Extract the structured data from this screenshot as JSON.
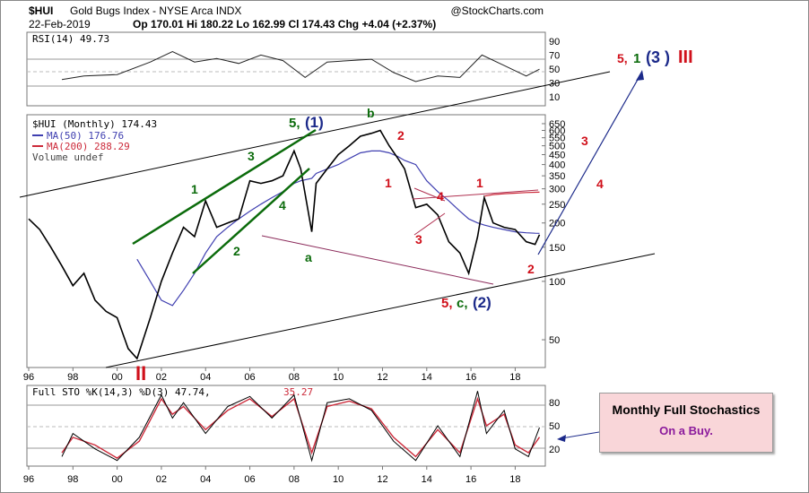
{
  "header": {
    "symbol": "$HUI",
    "name": "Gold Bugs Index - NYSE Arca INDX",
    "source": "@StockCharts.com",
    "date": "22-Feb-2019",
    "quote": "Op 170.01  Hi 180.22  Lo 162.99  Cl 174.43  Chg +4.04 (+2.37%)"
  },
  "rsi_panel": {
    "label": "RSI(14) 49.73",
    "ticks": [
      "90",
      "70",
      "50",
      "30",
      "10"
    ]
  },
  "price_panel": {
    "label": "$HUI (Monthly) 174.43",
    "ma50": "MA(50) 176.76",
    "ma200": "MA(200) 288.29",
    "volume": "Volume undef",
    "ticks": [
      "650",
      "600",
      "550",
      "500",
      "450",
      "400",
      "350",
      "300",
      "250",
      "200",
      "150",
      "100",
      "50"
    ],
    "colors": {
      "price": "#000000",
      "ma50": "#3f3fb0",
      "ma200": "#cc2a3a",
      "down": "#d0001b"
    }
  },
  "sto_panel": {
    "label_a": "Full STO %K(14,3) %D(3) 47.74,",
    "label_b": "35.27",
    "ticks": [
      "80",
      "50",
      "20"
    ]
  },
  "x_axis": [
    "96",
    "98",
    "00",
    "02",
    "04",
    "06",
    "08",
    "10",
    "12",
    "14",
    "16",
    "18"
  ],
  "wave_labels": [
    {
      "text": "5,",
      "color": "#0b6b0b"
    },
    {
      "text": "(1)",
      "color": "#1c2a8a"
    },
    {
      "text": "b",
      "color": "#0b6b0b"
    },
    {
      "text": "2",
      "color": "#d0101b"
    },
    {
      "text": "1",
      "color": "#0b6b0b"
    },
    {
      "text": "3",
      "color": "#0b6b0b"
    },
    {
      "text": "4",
      "color": "#0b6b0b"
    },
    {
      "text": "2",
      "color": "#0b6b0b"
    },
    {
      "text": "a",
      "color": "#0b6b0b"
    },
    {
      "text": "1",
      "color": "#d0101b"
    },
    {
      "text": "4",
      "color": "#d0101b"
    },
    {
      "text": "3",
      "color": "#d0101b"
    },
    {
      "text": "1",
      "color": "#d0101b"
    },
    {
      "text": "2",
      "color": "#d0101b"
    },
    {
      "text": "5,",
      "color": "#d0101b"
    },
    {
      "text": "c,",
      "color": "#0b6b0b"
    },
    {
      "text": "(2)",
      "color": "#1c2a8a"
    },
    {
      "text": "3",
      "color": "#d0101b"
    },
    {
      "text": "4",
      "color": "#d0101b"
    },
    {
      "text": "5,",
      "color": "#d0101b"
    },
    {
      "text": "1",
      "color": "#0b6b0b"
    },
    {
      "text": "(3 )",
      "color": "#1c2a8a"
    },
    {
      "text": "III",
      "color": "#d0101b"
    },
    {
      "text": "II",
      "color": "#d0101b"
    }
  ],
  "note": {
    "title": "Monthly Full Stochastics",
    "subtitle": "On a Buy."
  },
  "chart_data": {
    "type": "line",
    "title": "$HUI Gold Bugs Index (Monthly)",
    "x": [
      1996,
      1996.5,
      1997,
      1997.5,
      1998,
      1998.5,
      1999,
      1999.5,
      2000,
      2000.5,
      2000.9,
      2001.5,
      2002,
      2002.5,
      2003,
      2003.5,
      2004,
      2004.5,
      2005,
      2005.5,
      2006,
      2006.5,
      2007,
      2007.5,
      2008,
      2008.3,
      2008.8,
      2009,
      2009.5,
      2010,
      2010.5,
      2011,
      2011.5,
      2011.9,
      2012.3,
      2012.7,
      2013,
      2013.5,
      2014,
      2014.5,
      2015,
      2015.5,
      2015.9,
      2016.3,
      2016.6,
      2017,
      2017.5,
      2018,
      2018.5,
      2018.9,
      2019.1
    ],
    "series": [
      {
        "name": "$HUI (Monthly)",
        "values": [
          210,
          185,
          150,
          120,
          95,
          110,
          80,
          70,
          65,
          45,
          40,
          65,
          100,
          140,
          190,
          170,
          260,
          190,
          200,
          210,
          330,
          320,
          330,
          350,
          470,
          380,
          180,
          320,
          380,
          450,
          500,
          560,
          580,
          600,
          500,
          430,
          380,
          240,
          250,
          220,
          160,
          140,
          110,
          170,
          270,
          200,
          190,
          185,
          160,
          155,
          174
        ]
      },
      {
        "name": "MA(50)",
        "values": [
          null,
          null,
          null,
          null,
          null,
          null,
          null,
          null,
          null,
          null,
          130,
          100,
          80,
          75,
          90,
          110,
          140,
          170,
          190,
          210,
          230,
          250,
          270,
          290,
          320,
          330,
          340,
          360,
          380,
          400,
          430,
          460,
          470,
          470,
          460,
          440,
          420,
          400,
          330,
          290,
          260,
          230,
          210,
          200,
          195,
          190,
          185,
          180,
          178,
          177,
          176.76
        ]
      },
      {
        "name": "MA(200)",
        "values": [
          null,
          null,
          null,
          null,
          null,
          null,
          null,
          null,
          null,
          null,
          null,
          null,
          null,
          null,
          null,
          null,
          null,
          null,
          null,
          null,
          null,
          null,
          null,
          null,
          null,
          null,
          null,
          null,
          null,
          null,
          null,
          null,
          null,
          null,
          null,
          null,
          null,
          null,
          null,
          null,
          null,
          null,
          null,
          null,
          275,
          280,
          283,
          285,
          287,
          288,
          288.29
        ]
      }
    ],
    "rsi": {
      "x": [
        1997.5,
        1998.5,
        2000,
        2001.5,
        2002.5,
        2003.5,
        2004.5,
        2005.5,
        2006.5,
        2007.5,
        2008.5,
        2009.5,
        2010.5,
        2011.5,
        2012.5,
        2013.5,
        2014.5,
        2015.5,
        2016.5,
        2017.5,
        2018.5,
        2019.1
      ],
      "values": [
        35,
        40,
        42,
        60,
        75,
        60,
        65,
        58,
        70,
        62,
        38,
        60,
        62,
        64,
        45,
        32,
        40,
        38,
        70,
        55,
        40,
        49.73
      ]
    },
    "stochastics": {
      "x": [
        1997.5,
        1998,
        1999,
        2000,
        2001,
        2002,
        2002.5,
        2003,
        2004,
        2005,
        2006,
        2007,
        2008,
        2008.8,
        2009.5,
        2010.5,
        2011.5,
        2012.5,
        2013.5,
        2014.5,
        2015.5,
        2016.3,
        2016.7,
        2017.5,
        2018,
        2018.6,
        2019.1
      ],
      "k": [
        10,
        40,
        20,
        5,
        35,
        90,
        60,
        80,
        40,
        75,
        88,
        60,
        90,
        5,
        80,
        85,
        70,
        30,
        5,
        50,
        10,
        95,
        40,
        70,
        20,
        10,
        47.74
      ],
      "d": [
        15,
        35,
        25,
        8,
        30,
        85,
        65,
        75,
        45,
        70,
        85,
        62,
        85,
        15,
        75,
        82,
        72,
        35,
        10,
        45,
        15,
        85,
        50,
        65,
        25,
        15,
        35.27
      ]
    },
    "ylim": [
      40,
      700
    ],
    "y_scale": "log",
    "legend": "top-left"
  }
}
